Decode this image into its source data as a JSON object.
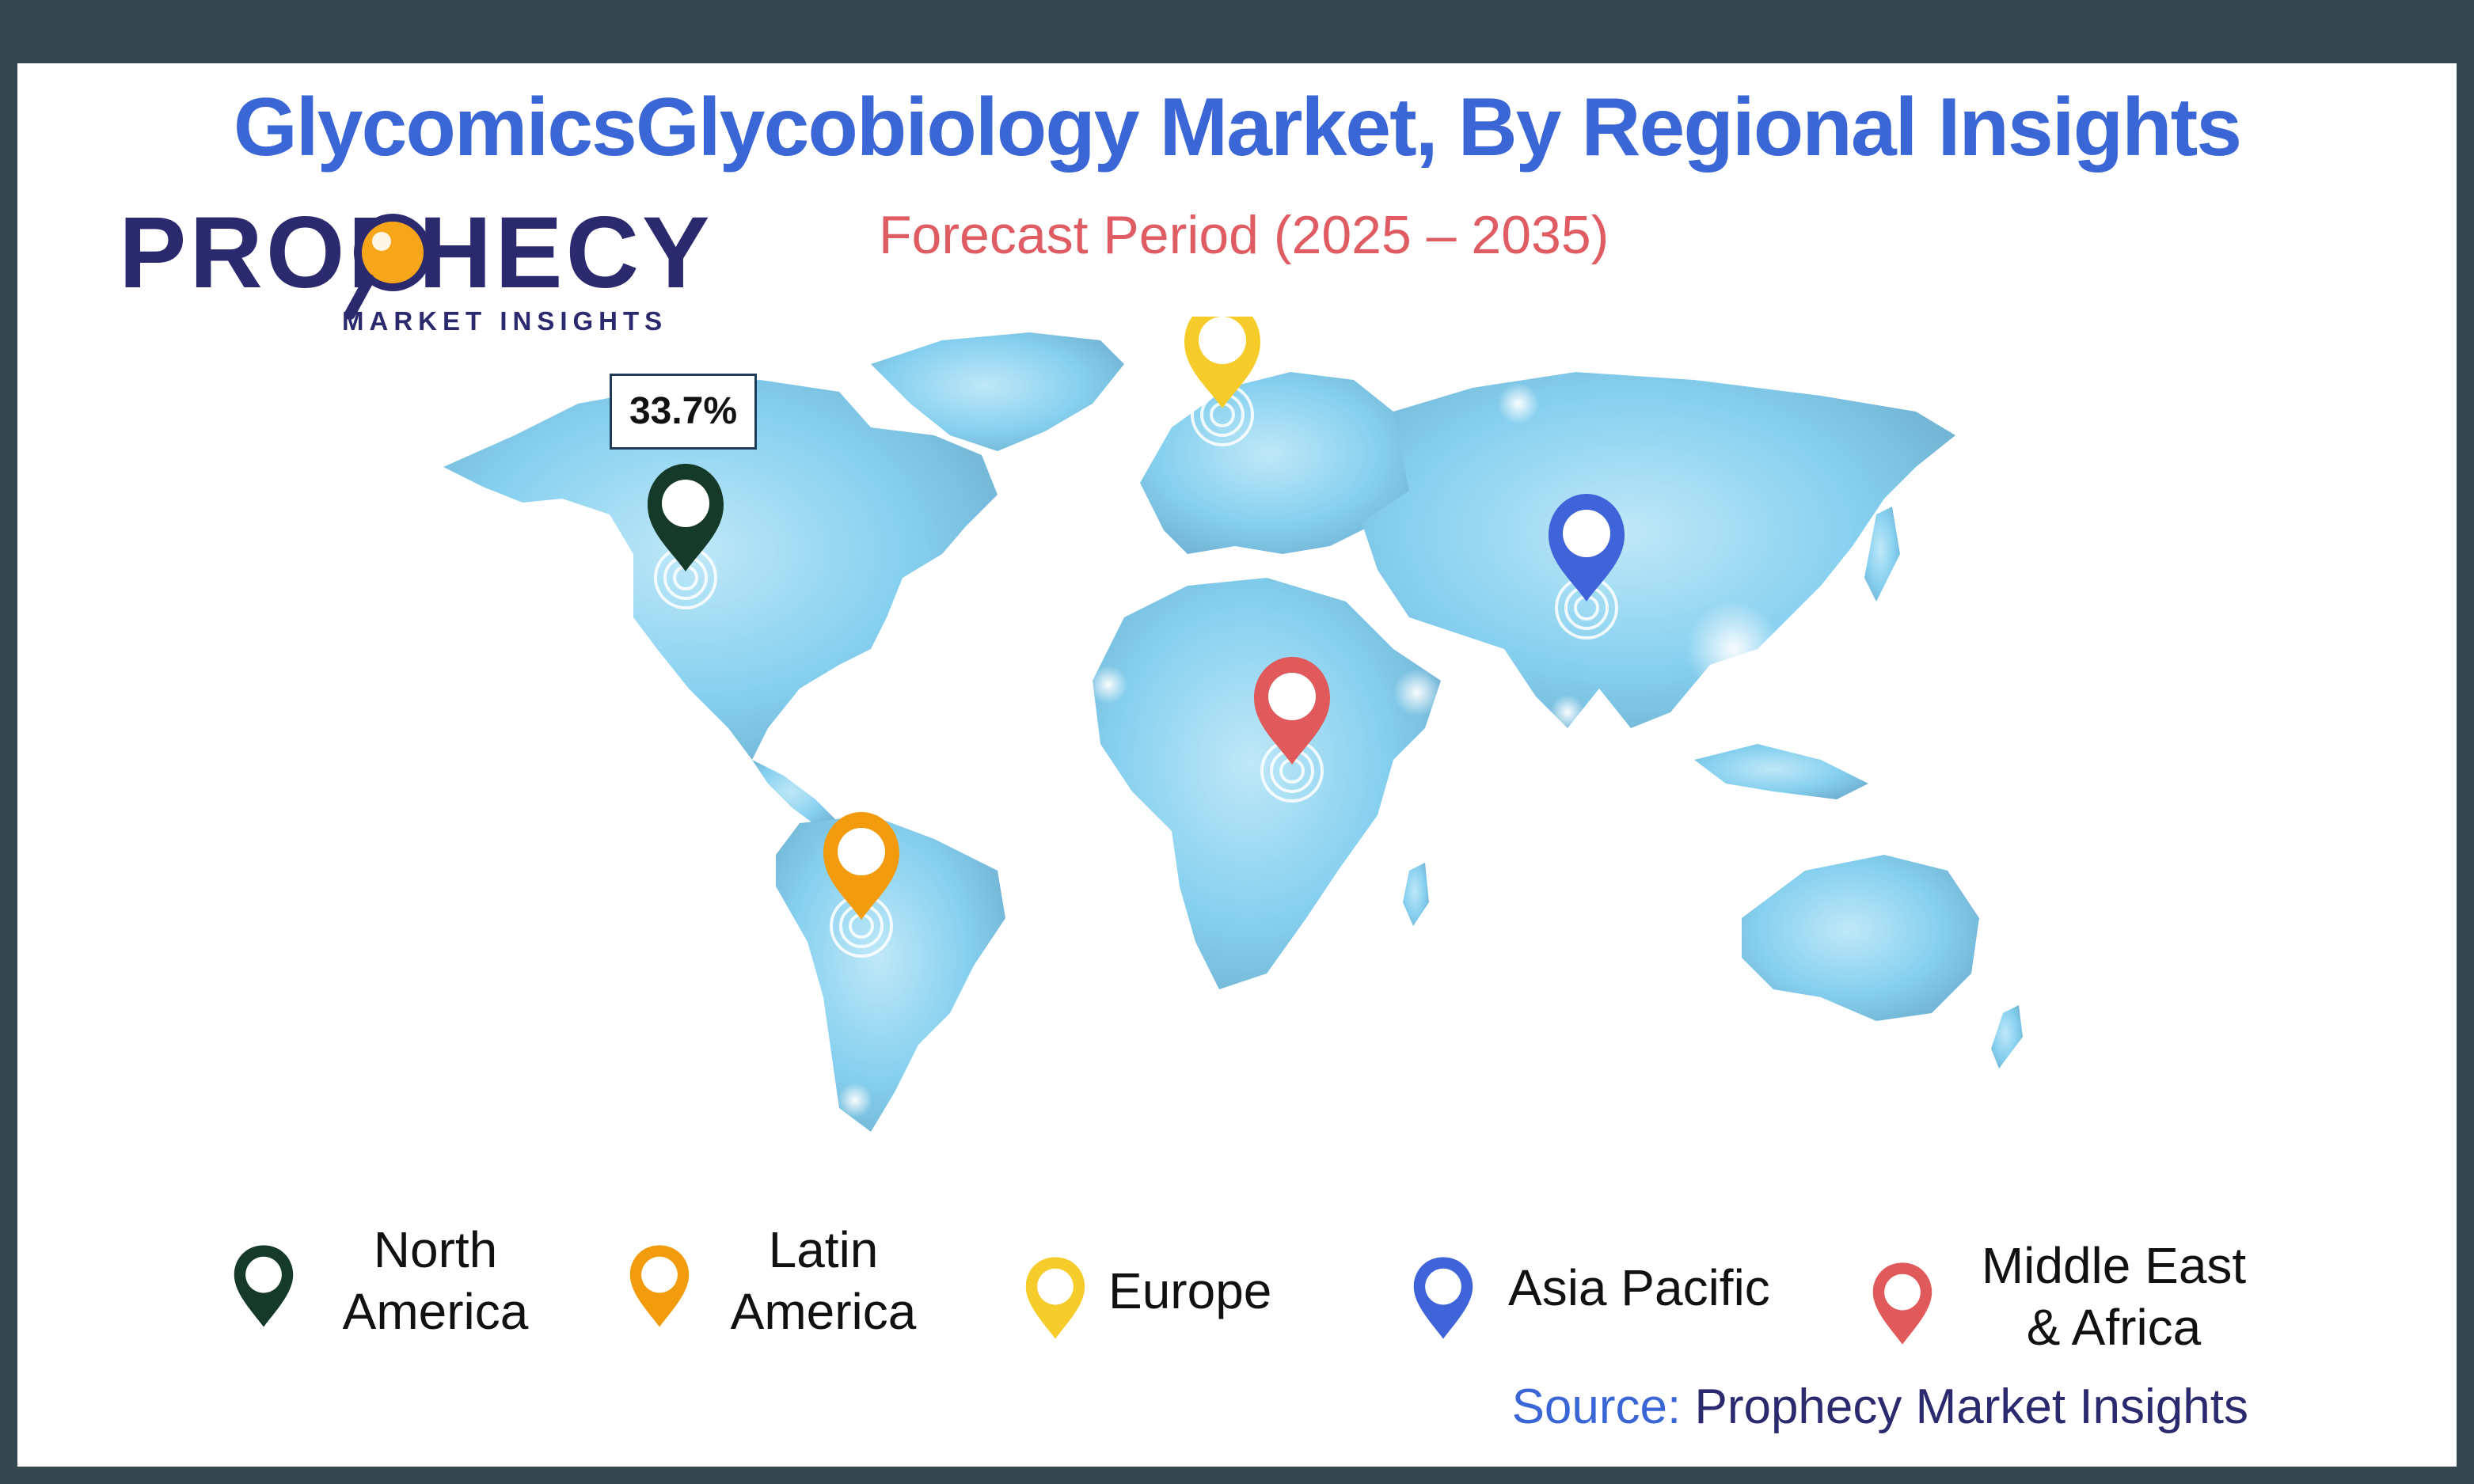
{
  "title": "GlycomicsGlycobiology Market, By Regional Insights",
  "subtitle": "Forecast Period (2025 – 2035)",
  "logo": {
    "word": "PROPHECY",
    "tagline": "MARKET INSIGHTS"
  },
  "callout": {
    "value": "33.7%",
    "region": "North America"
  },
  "regions": [
    {
      "id": "north-america",
      "label": "North\nAmerica",
      "color": "#163a2a"
    },
    {
      "id": "latin-america",
      "label": "Latin\nAmerica",
      "color": "#f29b0c"
    },
    {
      "id": "europe",
      "label": "Europe",
      "color": "#f6cc2a"
    },
    {
      "id": "asia-pacific",
      "label": "Asia Pacific",
      "color": "#3f63d8"
    },
    {
      "id": "middle-east-africa",
      "label": "Middle East\n& Africa",
      "color": "#e05a5c"
    }
  ],
  "source": {
    "label": "Source:",
    "name": "Prophecy Market Insights"
  },
  "colors": {
    "frame": "#34474f",
    "title": "#3a66d6",
    "subtitle": "#e05c63",
    "brand": "#2c2a6e",
    "map": "#7fc9ec"
  }
}
